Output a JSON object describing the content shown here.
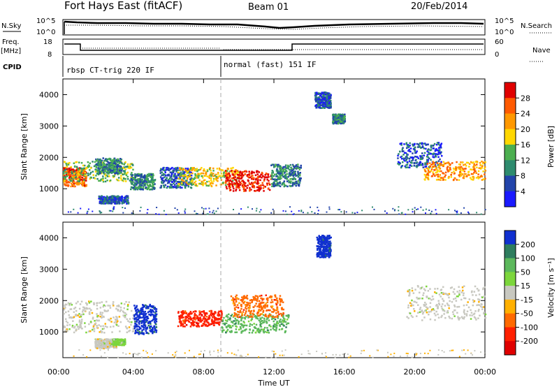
{
  "header": {
    "station": "Fort Hays East (fitACF)",
    "beam": "Beam 01",
    "date": "20/Feb/2014"
  },
  "side_labels": {
    "nsky": "N.Sky",
    "nsearch": "N.Search",
    "freq_line1": "Freq.",
    "freq_line2": "[MHz]",
    "nave": "Nave",
    "cpid": "CPID"
  },
  "cpid_segments": [
    {
      "label": "rbsp CT-trig 220 IF",
      "start_hour": 0
    },
    {
      "label": "normal (fast) 151 IF",
      "start_hour": 9
    }
  ],
  "noise_panel": {
    "left_ticks": [
      "10^5",
      "10^0"
    ],
    "right_ticks": [
      "10^5",
      "10^0"
    ]
  },
  "freq_panel": {
    "left_ticks": [
      "18",
      "8"
    ],
    "right_ticks": [
      "60",
      "0"
    ]
  },
  "chart_data": [
    {
      "type": "heatmap",
      "name": "power",
      "ylabel": "Slant Range [km]",
      "ylim": [
        180,
        4500
      ],
      "yticks": [
        "1000",
        "2000",
        "3000",
        "4000"
      ],
      "xlim_hours": [
        0,
        24
      ],
      "colorbar_label": "Power [dB]",
      "colorbar_ticks": [
        "4",
        "8",
        "12",
        "16",
        "20",
        "24",
        "28"
      ],
      "colorbar_colors": [
        "#1a1aff",
        "#2244aa",
        "#2e8b6e",
        "#4caf50",
        "#ffd700",
        "#ff9800",
        "#ff5a00",
        "#e00000"
      ],
      "echo_regions": [
        {
          "t0": 0.0,
          "t1": 1.3,
          "r0": 1100,
          "r1": 1700,
          "level": 6
        },
        {
          "t0": 0.0,
          "t1": 4.0,
          "r0": 1250,
          "r1": 1900,
          "level": 3
        },
        {
          "t0": 1.8,
          "t1": 3.3,
          "r0": 1500,
          "r1": 2000,
          "level": 2
        },
        {
          "t0": 2.0,
          "t1": 3.7,
          "r0": 550,
          "r1": 800,
          "level": 1
        },
        {
          "t0": 3.8,
          "t1": 5.2,
          "r0": 1000,
          "r1": 1500,
          "level": 2
        },
        {
          "t0": 5.5,
          "t1": 7.3,
          "r0": 1050,
          "r1": 1700,
          "level": 1
        },
        {
          "t0": 6.5,
          "t1": 10.0,
          "r0": 1100,
          "r1": 1700,
          "level": 4
        },
        {
          "t0": 9.2,
          "t1": 11.8,
          "r0": 950,
          "r1": 1600,
          "level": 7
        },
        {
          "t0": 11.8,
          "t1": 13.5,
          "r0": 1100,
          "r1": 1800,
          "level": 2
        },
        {
          "t0": 14.3,
          "t1": 15.2,
          "r0": 3600,
          "r1": 4100,
          "level": 1
        },
        {
          "t0": 15.3,
          "t1": 16.0,
          "r0": 3100,
          "r1": 3400,
          "level": 2
        },
        {
          "t0": 19.0,
          "t1": 21.5,
          "r0": 1700,
          "r1": 2500,
          "level": 1
        },
        {
          "t0": 20.5,
          "t1": 24.0,
          "r0": 1300,
          "r1": 1900,
          "level": 5
        }
      ]
    },
    {
      "type": "heatmap",
      "name": "velocity",
      "ylabel": "Slant Range [km]",
      "ylim": [
        180,
        4500
      ],
      "yticks": [
        "1000",
        "2000",
        "3000",
        "4000"
      ],
      "xlim_hours": [
        0,
        24
      ],
      "xticks": [
        "00:00",
        "04:00",
        "08:00",
        "12:00",
        "16:00",
        "20:00",
        "00:00"
      ],
      "xlabel": "Time UT",
      "colorbar_label": "Velocity [m s⁻¹]",
      "colorbar_ticks": [
        "200",
        "100",
        "50",
        "15",
        "-15",
        "-50",
        "-100",
        "-200"
      ],
      "colorbar_colors": [
        "#1030d0",
        "#2e7d5e",
        "#5cb85c",
        "#7cd63c",
        "#c8c8c0",
        "#ffb000",
        "#ff6a00",
        "#ff2000",
        "#e00000"
      ],
      "echo_regions": [
        {
          "t0": 0.0,
          "t1": 4.0,
          "r0": 1000,
          "r1": 2000,
          "color_index": 4
        },
        {
          "t0": 1.8,
          "t1": 3.0,
          "r0": 500,
          "r1": 800,
          "color_index": 4
        },
        {
          "t0": 2.8,
          "t1": 3.5,
          "r0": 600,
          "r1": 800,
          "color_index": 3
        },
        {
          "t0": 4.0,
          "t1": 5.3,
          "r0": 950,
          "r1": 1900,
          "color_index": 0
        },
        {
          "t0": 6.5,
          "t1": 9.0,
          "r0": 1200,
          "r1": 1700,
          "color_index": 7
        },
        {
          "t0": 9.0,
          "t1": 12.8,
          "r0": 1000,
          "r1": 1600,
          "color_index": 2
        },
        {
          "t0": 9.5,
          "t1": 12.5,
          "r0": 1500,
          "r1": 2200,
          "color_index": 6
        },
        {
          "t0": 14.4,
          "t1": 15.2,
          "r0": 3400,
          "r1": 4100,
          "color_index": 0
        },
        {
          "t0": 19.5,
          "t1": 24.0,
          "r0": 1400,
          "r1": 2500,
          "color_index": 4
        }
      ]
    }
  ]
}
